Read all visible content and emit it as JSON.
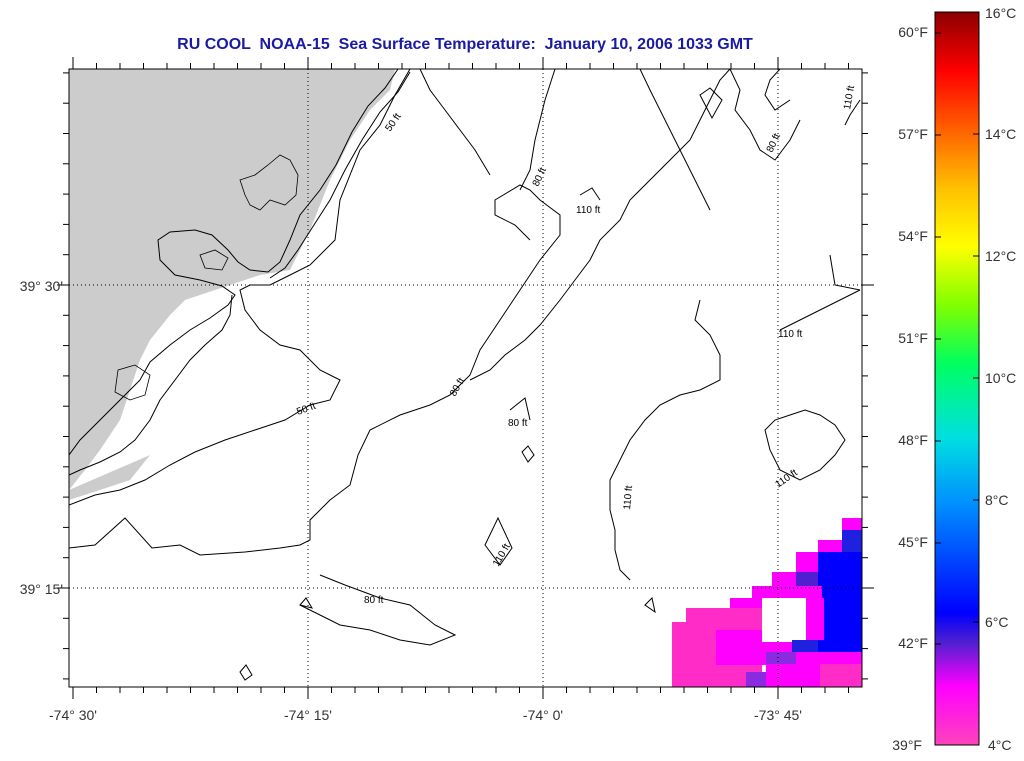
{
  "title": "RU COOL  NOAA-15  Sea Surface Temperature:  January 10, 2006 1033 GMT",
  "map": {
    "lon_ticks": [
      "-74° 30'",
      "-74° 15'",
      "-74° 0'",
      "-73° 45'"
    ],
    "lat_ticks": [
      "39° 30'",
      "39° 15'"
    ],
    "land_color": "#cccccc",
    "contours": [
      {
        "depth_label": "50 ft"
      },
      {
        "depth_label": "50 ft"
      },
      {
        "depth_label": "80 ft"
      },
      {
        "depth_label": "80 ft"
      },
      {
        "depth_label": "80 ft"
      },
      {
        "depth_label": "80 ft"
      },
      {
        "depth_label": "80 ft"
      },
      {
        "depth_label": "110 ft"
      },
      {
        "depth_label": "110 ft"
      },
      {
        "depth_label": "110 ft"
      },
      {
        "depth_label": "110 ft"
      },
      {
        "depth_label": "110 ft"
      },
      {
        "depth_label": "110 ft"
      }
    ]
  },
  "colorbar": {
    "fahrenheit_labels": [
      "60°F",
      "57°F",
      "54°F",
      "51°F",
      "48°F",
      "45°F",
      "42°F",
      "39°F"
    ],
    "celsius_labels": [
      "16°C",
      "14°C",
      "12°C",
      "10°C",
      "8°C",
      "6°C",
      "4°C"
    ],
    "range_celsius": [
      4,
      16
    ],
    "colors": [
      "#8b0000",
      "#ff0000",
      "#ff8c00",
      "#ffff00",
      "#00ff7f",
      "#00bfff",
      "#0000ff",
      "#ff00ff"
    ]
  }
}
